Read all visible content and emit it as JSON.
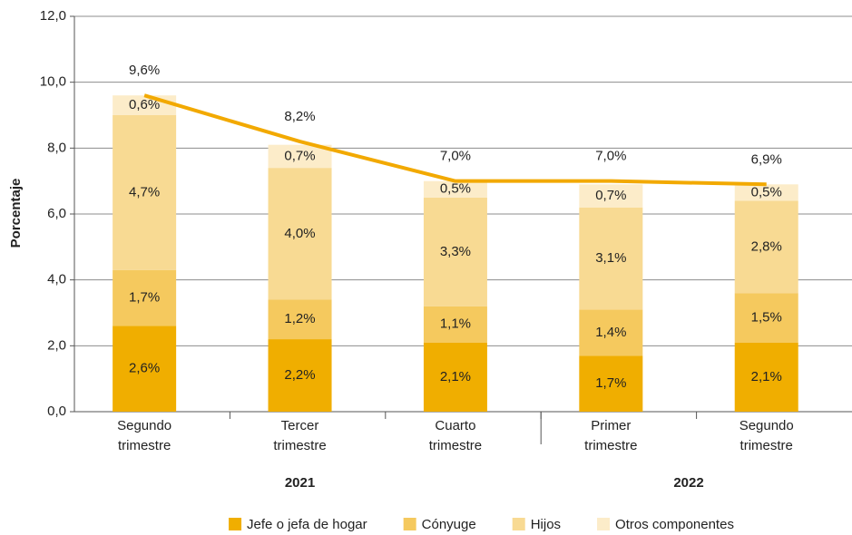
{
  "chart_data": {
    "type": "stacked_bar_line",
    "y_label": "Porcentaje",
    "categories": [
      "Segundo trimestre",
      "Tercer trimestre",
      "Cuarto trimestre",
      "Primer trimestre",
      "Segundo trimestre"
    ],
    "groups": [
      {
        "label": "2021",
        "start": 0,
        "end": 2
      },
      {
        "label": "2022",
        "start": 3,
        "end": 4
      }
    ],
    "series": [
      {
        "name": "Jefe o jefa de hogar",
        "color": "#f0ae00",
        "values": [
          2.6,
          2.2,
          2.1,
          1.7,
          2.1
        ],
        "value_labels": [
          "2,6%",
          "2,2%",
          "2,1%",
          "1,7%",
          "2,1%"
        ]
      },
      {
        "name": "Cónyuge",
        "color": "#f5c95e",
        "values": [
          1.7,
          1.2,
          1.1,
          1.4,
          1.5
        ],
        "value_labels": [
          "1,7%",
          "1,2%",
          "1,1%",
          "1,4%",
          "1,5%"
        ]
      },
      {
        "name": "Hijos",
        "color": "#f8da93",
        "values": [
          4.7,
          4.0,
          3.3,
          3.1,
          2.8
        ],
        "value_labels": [
          "4,7%",
          "4,0%",
          "3,3%",
          "3,1%",
          "2,8%"
        ]
      },
      {
        "name": "Otros componentes",
        "color": "#fcecc9",
        "values": [
          0.6,
          0.7,
          0.5,
          0.7,
          0.5
        ],
        "value_labels": [
          "0,6%",
          "0,7%",
          "0,5%",
          "0,7%",
          "0,5%"
        ]
      }
    ],
    "total": {
      "color": "#f2a900",
      "values": [
        9.6,
        8.2,
        7.0,
        7.0,
        6.9
      ],
      "value_labels": [
        "9,6%",
        "8,2%",
        "7,0%",
        "7,0%",
        "6,9%"
      ]
    },
    "ylim": [
      0,
      12
    ],
    "yticks": [
      {
        "value": 0,
        "label": "0,0"
      },
      {
        "value": 2,
        "label": "2,0"
      },
      {
        "value": 4,
        "label": "4,0"
      },
      {
        "value": 6,
        "label": "6,0"
      },
      {
        "value": 8,
        "label": "8,0"
      },
      {
        "value": 10,
        "label": "10,0"
      },
      {
        "value": 12,
        "label": "12,0"
      }
    ],
    "grid": true,
    "legend": "bottom"
  }
}
